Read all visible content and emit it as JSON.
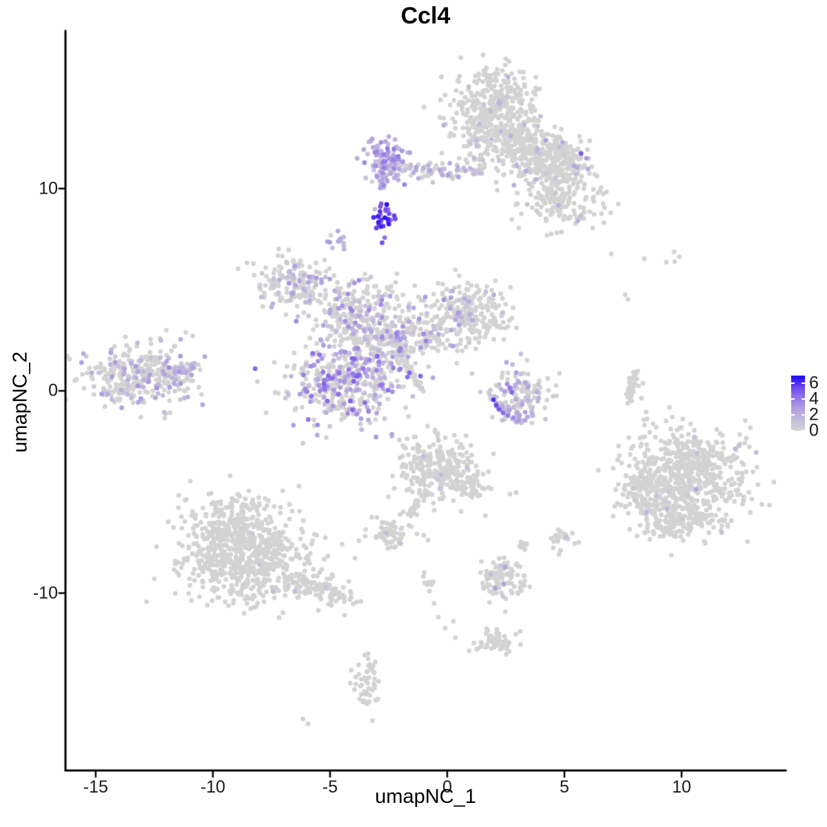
{
  "chart_data": {
    "type": "scatter",
    "title": "Ccl4",
    "xlabel": "umapNC_1",
    "ylabel": "umapNC_2",
    "xlim": [
      -16.29,
      14.44
    ],
    "ylim": [
      -18.77,
      17.79
    ],
    "x_ticks": [
      -15,
      -10,
      -5,
      0,
      5,
      10
    ],
    "x_tick_labels": [
      "-15",
      "-10",
      "-5",
      "0",
      "5",
      "10"
    ],
    "y_ticks": [
      10,
      0,
      -10
    ],
    "y_tick_labels": [
      "10",
      "0",
      "-10"
    ],
    "grid": "off",
    "legend_position": "right",
    "point_radius_px": 3.4,
    "colors": {
      "low": "#D3D3D3",
      "high": "#1A00F2",
      "stops": [
        "#D3D3D3",
        "#C4BCDB",
        "#B0A0E1",
        "#9577E7",
        "#6B43ED",
        "#1A00F2"
      ]
    },
    "colorbar": {
      "limits": [
        0,
        7
      ],
      "tick_values": [
        6,
        4,
        2,
        0
      ],
      "tick_labels": [
        "6",
        "4",
        "2",
        "0"
      ]
    },
    "clusters": [
      {
        "name": "top-island-main",
        "type": "gauss",
        "x": 1.94,
        "y": 13.67,
        "sx": 0.9,
        "sy": 1.15,
        "n": 450,
        "frac": 0.025,
        "vmin": 0.4,
        "vmax": 2.2
      },
      {
        "name": "top-island-right",
        "type": "gauss",
        "x": 4.44,
        "y": 11.39,
        "sx": 0.76,
        "sy": 0.6,
        "n": 280,
        "frac": 0.05,
        "vmin": 0.4,
        "vmax": 2.8
      },
      {
        "name": "top-island-lower-right",
        "type": "gauss",
        "x": 4.79,
        "y": 9.35,
        "sx": 0.88,
        "sy": 0.68,
        "n": 170,
        "frac": 0.03,
        "vmin": 0.3,
        "vmax": 2.0
      },
      {
        "name": "top-island-bridge",
        "type": "gauss",
        "x": 3.18,
        "y": 12.31,
        "sx": 0.5,
        "sy": 0.5,
        "n": 90,
        "frac": 0.02,
        "vmin": 0.3,
        "vmax": 1.5
      },
      {
        "name": "band-left-dense",
        "type": "gauss",
        "x": -2.62,
        "y": 11.33,
        "sx": 0.45,
        "sy": 0.6,
        "n": 100,
        "frac": 0.9,
        "vmin": 0.8,
        "vmax": 4.2
      },
      {
        "name": "band-left-tail",
        "type": "line",
        "x1": -2.82,
        "y1": 10.71,
        "x2": -2.82,
        "y2": 10.03,
        "w": 0.08,
        "n": 10,
        "frac": 0.9,
        "vmin": 1.0,
        "vmax": 3.0
      },
      {
        "name": "band-strip",
        "type": "line",
        "x1": -2.18,
        "y1": 10.95,
        "x2": 1.5,
        "y2": 10.78,
        "w": 0.18,
        "n": 75,
        "frac": 0.4,
        "vmin": 0.5,
        "vmax": 2.8
      },
      {
        "name": "band-right-column",
        "type": "gauss",
        "x": 1.29,
        "y": 11.36,
        "sx": 0.12,
        "sy": 0.55,
        "n": 22,
        "frac": 0.25,
        "vmin": 0.3,
        "vmax": 1.5
      },
      {
        "name": "high-expression-clump",
        "type": "gauss",
        "x": -2.74,
        "y": 8.54,
        "sx": 0.28,
        "sy": 0.42,
        "n": 26,
        "frac": 1.0,
        "vmin": 4.2,
        "vmax": 7.0
      },
      {
        "name": "small-purple-clump",
        "type": "gauss",
        "x": -4.68,
        "y": 7.35,
        "sx": 0.22,
        "sy": 0.3,
        "n": 13,
        "frac": 0.85,
        "vmin": 1.2,
        "vmax": 3.2
      },
      {
        "name": "central-arm-topleft",
        "type": "gauss",
        "x": -6.56,
        "y": 5.37,
        "sx": 0.85,
        "sy": 0.6,
        "n": 150,
        "frac": 0.3,
        "vmin": 0.4,
        "vmax": 3.2
      },
      {
        "name": "central-upper-mid",
        "type": "gauss",
        "x": -3.79,
        "y": 3.91,
        "sx": 1.05,
        "sy": 0.85,
        "n": 240,
        "frac": 0.32,
        "vmin": 0.4,
        "vmax": 3.8
      },
      {
        "name": "central-right-lobe",
        "type": "gauss",
        "x": 0.85,
        "y": 3.74,
        "sx": 1.0,
        "sy": 0.8,
        "n": 260,
        "frac": 0.12,
        "vmin": 0.4,
        "vmax": 3.0
      },
      {
        "name": "central-core",
        "type": "gauss",
        "x": -2.12,
        "y": 2.55,
        "sx": 1.0,
        "sy": 0.75,
        "n": 220,
        "frac": 0.3,
        "vmin": 0.4,
        "vmax": 4.0
      },
      {
        "name": "central-lower-left-lobe",
        "type": "gauss",
        "x": -4.47,
        "y": 0.37,
        "sx": 1.2,
        "sy": 1.0,
        "n": 400,
        "frac": 0.55,
        "vmin": 0.4,
        "vmax": 4.8
      },
      {
        "name": "central-streak",
        "type": "line",
        "x1": -2.53,
        "y1": 3.03,
        "x2": -1.09,
        "y2": 0.0,
        "w": 0.07,
        "n": 65,
        "frac": 0.02,
        "vmin": 0.3,
        "vmax": 1.0
      },
      {
        "name": "left-island",
        "type": "gauss",
        "x": -13.06,
        "y": 0.71,
        "sx": 1.15,
        "sy": 0.78,
        "n": 310,
        "frac": 0.28,
        "vmin": 0.4,
        "vmax": 3.5
      },
      {
        "name": "left-island-tip",
        "type": "line",
        "x1": -12.03,
        "y1": 0.92,
        "x2": -10.71,
        "y2": 1.19,
        "w": 0.12,
        "n": 45,
        "frac": 0.5,
        "vmin": 0.8,
        "vmax": 3.2
      },
      {
        "name": "right-crescent",
        "type": "gauss",
        "x": 3.21,
        "y": -0.2,
        "sx": 0.72,
        "sy": 0.62,
        "n": 120,
        "frac": 0.4,
        "vmin": 0.4,
        "vmax": 2.8
      },
      {
        "name": "right-crescent-arc",
        "type": "line",
        "x1": 1.97,
        "y1": -0.51,
        "x2": 3.26,
        "y2": -1.5,
        "w": 0.1,
        "n": 25,
        "frac": 0.7,
        "vmin": 1.0,
        "vmax": 3.5
      },
      {
        "name": "far-right-streak",
        "type": "line",
        "x1": 8.0,
        "y1": 0.95,
        "x2": 7.71,
        "y2": -0.68,
        "w": 0.08,
        "n": 40,
        "frac": 0,
        "vmin": 0,
        "vmax": 0
      },
      {
        "name": "bottom-right-island-core",
        "type": "gauss",
        "x": 10.32,
        "y": -4.12,
        "sx": 1.35,
        "sy": 1.15,
        "n": 620,
        "frac": 0.012,
        "vmin": 0.3,
        "vmax": 1.8
      },
      {
        "name": "bottom-right-island-arm",
        "type": "gauss",
        "x": 8.32,
        "y": -5.0,
        "sx": 0.45,
        "sy": 0.75,
        "n": 80,
        "frac": 0.01,
        "vmin": 0.3,
        "vmax": 1.0
      },
      {
        "name": "bottom-right-island-south",
        "type": "gauss",
        "x": 9.88,
        "y": -6.46,
        "sx": 0.95,
        "sy": 0.5,
        "n": 150,
        "frac": 0.01,
        "vmin": 0.3,
        "vmax": 1.0
      },
      {
        "name": "bottom-left-island-north",
        "type": "gauss",
        "x": -8.94,
        "y": -6.63,
        "sx": 1.05,
        "sy": 0.8,
        "n": 280,
        "frac": 0.006,
        "vmin": 0.3,
        "vmax": 1.2
      },
      {
        "name": "bottom-left-island-main",
        "type": "gauss",
        "x": -8.74,
        "y": -8.54,
        "sx": 1.5,
        "sy": 0.95,
        "n": 480,
        "frac": 0.006,
        "vmin": 0.3,
        "vmax": 1.2
      },
      {
        "name": "bottom-left-island-arm",
        "type": "line",
        "x1": -6.88,
        "y1": -9.22,
        "x2": -4.09,
        "y2": -10.37,
        "w": 0.3,
        "n": 110,
        "frac": 0.02,
        "vmin": 0.3,
        "vmax": 1.6
      },
      {
        "name": "center-bottom-island",
        "type": "gauss",
        "x": -0.24,
        "y": -3.81,
        "sx": 0.85,
        "sy": 0.8,
        "n": 260,
        "frac": 0.03,
        "vmin": 0.3,
        "vmax": 1.8
      },
      {
        "name": "center-bottom-tail",
        "type": "line",
        "x1": -0.94,
        "y1": -4.97,
        "x2": -1.68,
        "y2": -6.29,
        "w": 0.1,
        "n": 35,
        "frac": 0,
        "vmin": 0,
        "vmax": 0
      },
      {
        "name": "center-bottom-east",
        "type": "gauss",
        "x": 0.94,
        "y": -4.73,
        "sx": 0.38,
        "sy": 0.38,
        "n": 45,
        "frac": 0.02,
        "vmin": 0.3,
        "vmax": 1.0
      },
      {
        "name": "small-island-left-of-center",
        "type": "gauss",
        "x": -2.44,
        "y": -6.97,
        "sx": 0.5,
        "sy": 0.35,
        "n": 65,
        "frac": 0.03,
        "vmin": 0.3,
        "vmax": 1.5
      },
      {
        "name": "mini-clump-a",
        "type": "gauss",
        "x": 3.26,
        "y": -7.69,
        "sx": 0.18,
        "sy": 0.15,
        "n": 12,
        "frac": 0,
        "vmin": 0,
        "vmax": 0
      },
      {
        "name": "mini-clump-b",
        "type": "gauss",
        "x": 4.91,
        "y": -7.28,
        "sx": 0.28,
        "sy": 0.25,
        "n": 22,
        "frac": 0,
        "vmin": 0,
        "vmax": 0
      },
      {
        "name": "bottom-small-island",
        "type": "gauss",
        "x": 2.32,
        "y": -9.25,
        "sx": 0.5,
        "sy": 0.5,
        "n": 100,
        "frac": 0.05,
        "vmin": 0.3,
        "vmax": 2.0
      },
      {
        "name": "trail-clump",
        "type": "gauss",
        "x": -0.79,
        "y": -9.39,
        "sx": 0.15,
        "sy": 0.2,
        "n": 9,
        "frac": 0,
        "vmin": 0,
        "vmax": 0
      },
      {
        "name": "bottom-clump",
        "type": "gauss",
        "x": 2.09,
        "y": -12.38,
        "sx": 0.45,
        "sy": 0.3,
        "n": 55,
        "frac": 0,
        "vmin": 0,
        "vmax": 0
      },
      {
        "name": "bottom-center-clump",
        "type": "gauss",
        "x": -3.44,
        "y": -14.59,
        "sx": 0.28,
        "sy": 0.55,
        "n": 50,
        "frac": 0,
        "vmin": 0,
        "vmax": 0
      }
    ],
    "singles": [
      [
        5.71,
        11.73,
        5.0
      ],
      [
        5.94,
        11.5,
        3.0
      ],
      [
        5.41,
        11.12,
        2.5
      ],
      [
        1.85,
        13.84,
        1.5
      ],
      [
        2.29,
        12.82,
        1.5
      ],
      [
        2.85,
        10.17,
        2.0
      ],
      [
        -2.82,
        9.25,
        5.0
      ],
      [
        -3.09,
        8.98,
        1.5
      ],
      [
        -11.38,
        2.55,
        2.2
      ],
      [
        -10.85,
        2.72,
        0
      ],
      [
        -11.15,
        2.89,
        0
      ],
      [
        2.56,
        0.34,
        3.5
      ],
      [
        2.68,
        0.14,
        4.2
      ],
      [
        2.76,
        -0.07,
        4.6
      ],
      [
        1.97,
        -0.44,
        6.0
      ],
      [
        2.09,
        -0.71,
        5.5
      ],
      [
        2.21,
        -0.92,
        5.0
      ],
      [
        2.38,
        -1.09,
        4.5
      ],
      [
        2.59,
        -1.22,
        4.0
      ],
      [
        2.82,
        -1.33,
        3.5
      ],
      [
        3.06,
        -1.43,
        3.0
      ],
      [
        2.94,
        -1.53,
        2.5
      ],
      [
        3.32,
        -1.46,
        2.5
      ],
      [
        8.35,
        0.37,
        0
      ],
      [
        8.29,
        -0.37,
        0
      ],
      [
        7.0,
        6.77,
        0
      ],
      [
        8.41,
        6.53,
        0
      ],
      [
        9.35,
        6.36,
        0
      ],
      [
        9.68,
        6.87,
        0
      ],
      [
        9.91,
        6.63,
        0
      ],
      [
        9.71,
        6.39,
        0
      ],
      [
        7.59,
        4.76,
        0
      ],
      [
        7.71,
        4.52,
        0
      ],
      [
        10.62,
        -4.86,
        2.6
      ],
      [
        12.44,
        -2.72,
        1.4
      ],
      [
        9.38,
        -5.82,
        1.6
      ],
      [
        -6.5,
        -9.9,
        1.4
      ],
      [
        -7.44,
        -9.9,
        1.2
      ],
      [
        -5.5,
        -10.85,
        0
      ],
      [
        -4.38,
        -11.09,
        0
      ],
      [
        -2.62,
        -7.04,
        1.3
      ],
      [
        -1.29,
        -7.07,
        0
      ],
      [
        -1.0,
        -7.14,
        0
      ],
      [
        -0.82,
        -7.38,
        0
      ],
      [
        -2.53,
        -7.79,
        0
      ],
      [
        5.09,
        -7.21,
        1.2
      ],
      [
        2.68,
        -5.1,
        0
      ],
      [
        2.94,
        -5.03,
        0
      ],
      [
        2.47,
        -8.71,
        2.6
      ],
      [
        2.41,
        -9.56,
        2.6
      ],
      [
        2.06,
        -9.76,
        2.6
      ],
      [
        -0.76,
        -9.9,
        0
      ],
      [
        -0.56,
        -10.51,
        0
      ],
      [
        -0.38,
        -11.19,
        0
      ],
      [
        -0.09,
        -11.73,
        0
      ],
      [
        0.26,
        -11.39,
        0
      ],
      [
        0.35,
        -12.21,
        0
      ],
      [
        -6.15,
        -16.22,
        0
      ],
      [
        -5.94,
        -16.46,
        0
      ],
      [
        6.65,
        9.25,
        0
      ],
      [
        6.97,
        8.81,
        0
      ],
      [
        0.41,
        1.36,
        0
      ],
      [
        1.06,
        0.85,
        0
      ]
    ]
  }
}
